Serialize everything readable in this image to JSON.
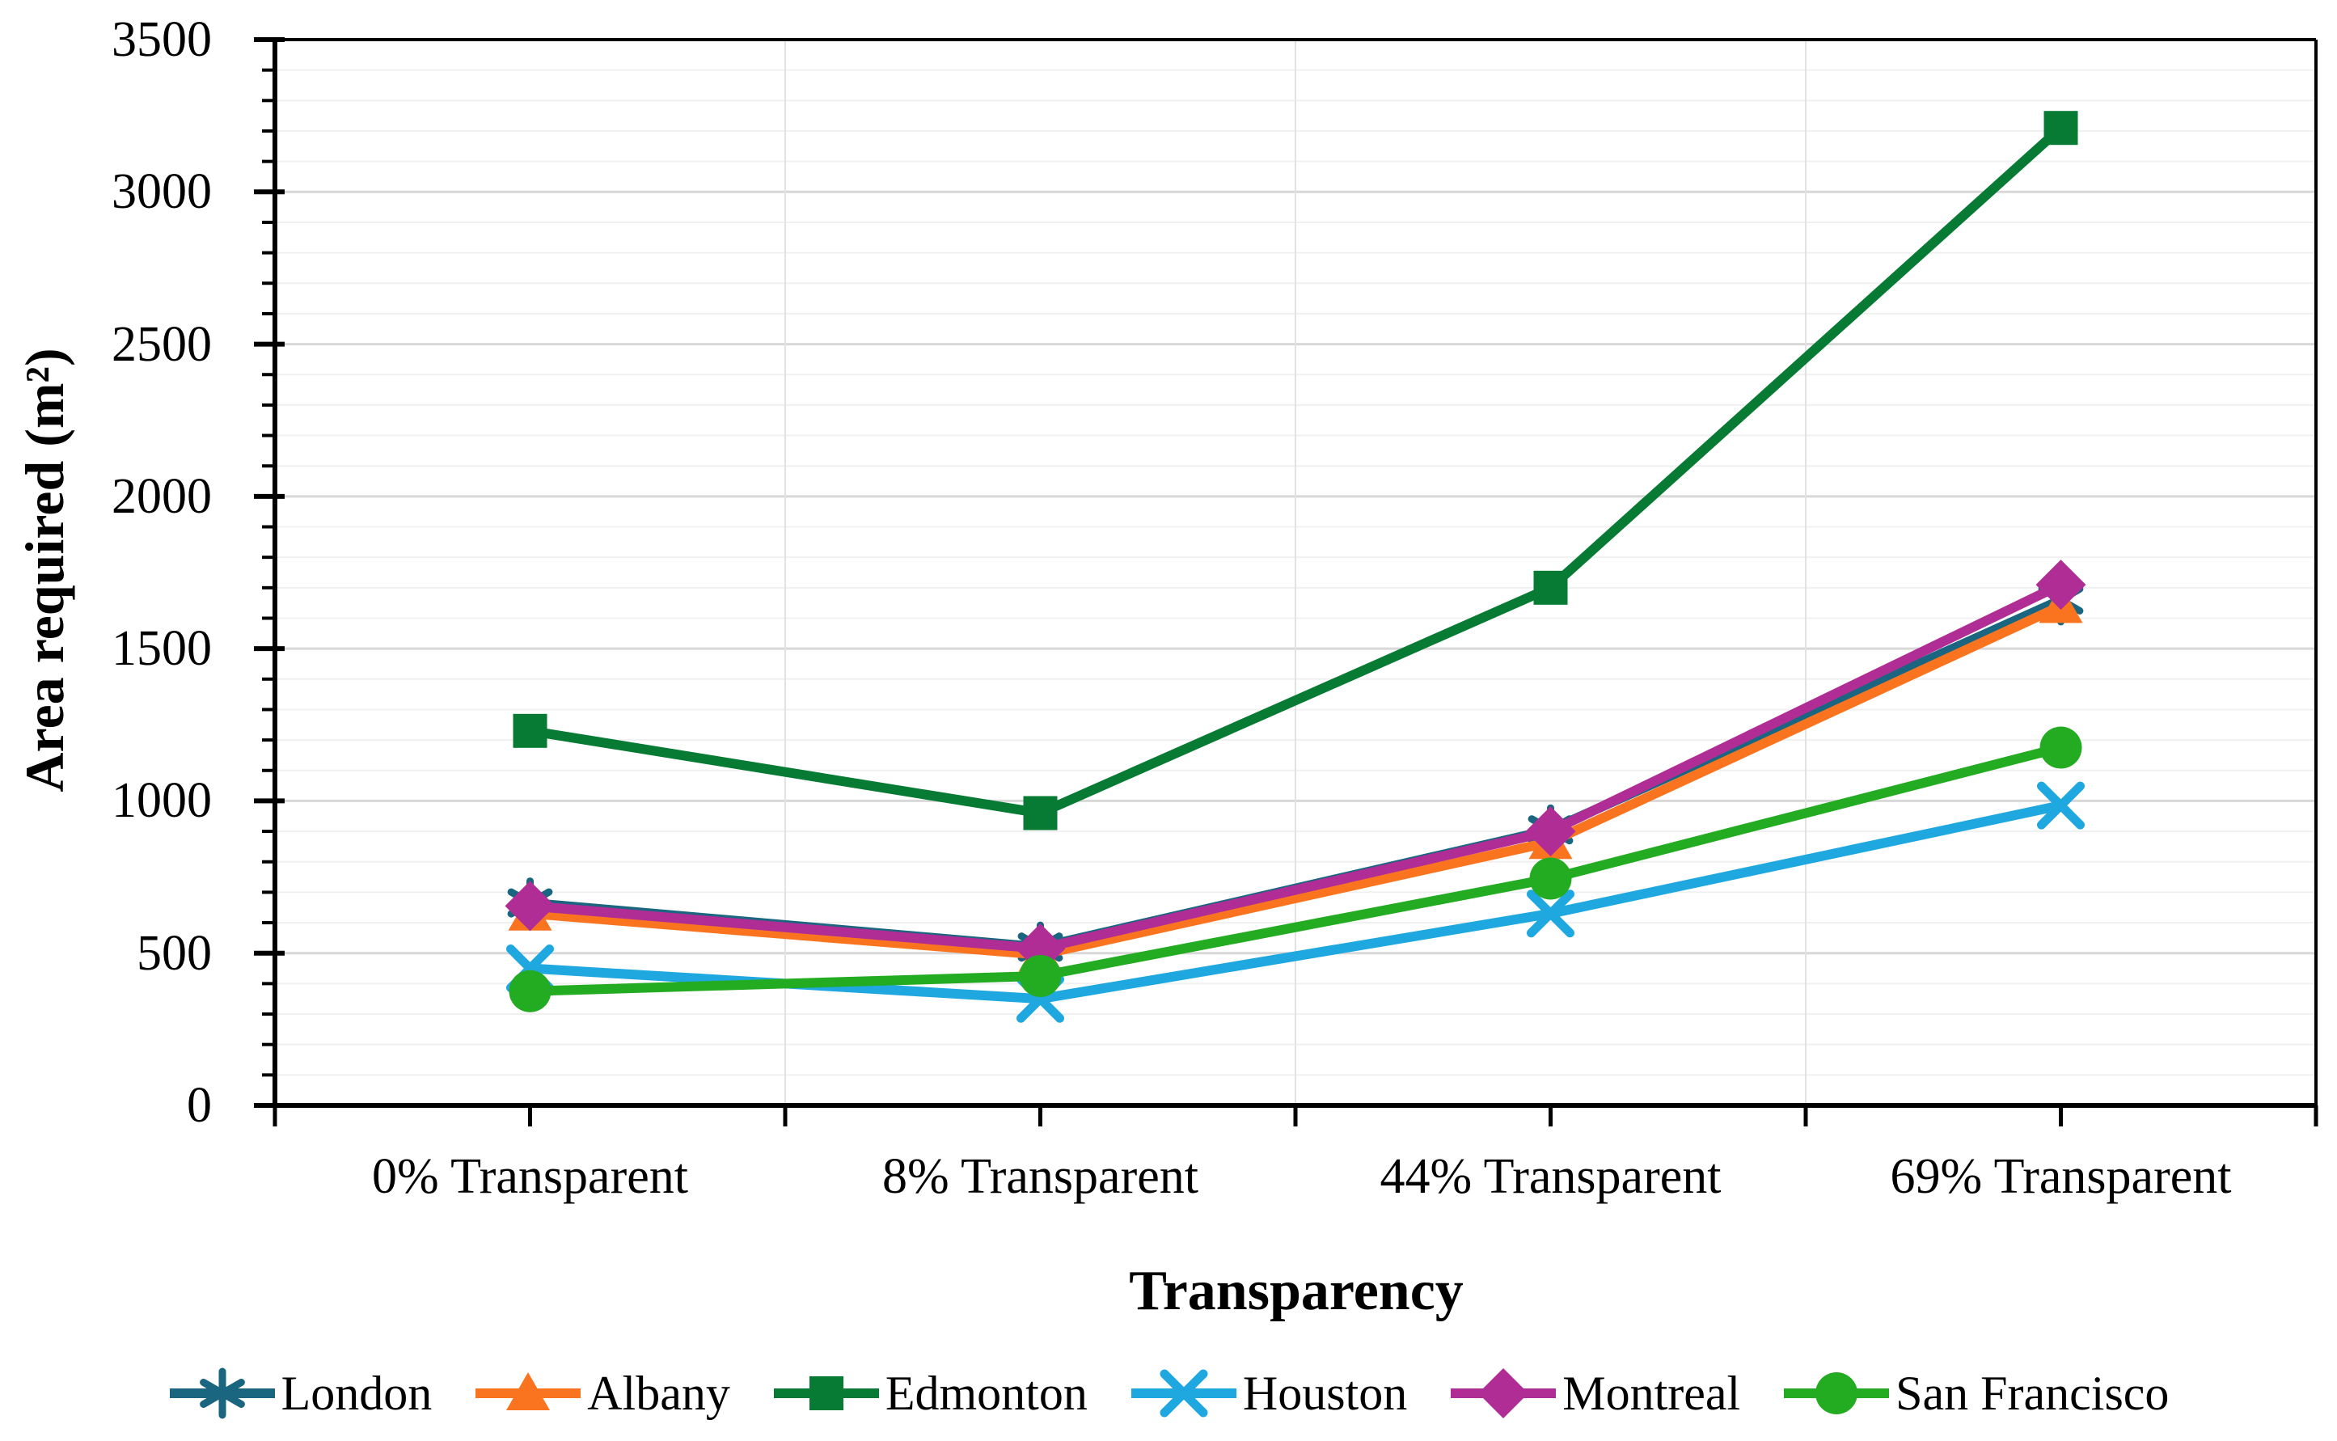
{
  "chart_data": {
    "type": "line",
    "title": "",
    "xlabel": "Transparency",
    "ylabel": "Area required (m²)",
    "categories": [
      "0% Transparent",
      "8% Transparent",
      "44% Transparent",
      "69% Transparent"
    ],
    "series": [
      {
        "name": "London",
        "color": "#1A6580",
        "marker": "asterisk",
        "values": [
          665,
          520,
          905,
          1660
        ]
      },
      {
        "name": "Albany",
        "color": "#FA7420",
        "marker": "triangle",
        "values": [
          630,
          495,
          865,
          1640
        ]
      },
      {
        "name": "Edmonton",
        "color": "#077B33",
        "marker": "square",
        "values": [
          1230,
          960,
          1700,
          3210
        ]
      },
      {
        "name": "Houston",
        "color": "#1FA8E0",
        "marker": "x",
        "values": [
          450,
          350,
          630,
          985
        ]
      },
      {
        "name": "Montreal",
        "color": "#B02D96",
        "marker": "diamond",
        "values": [
          655,
          515,
          900,
          1710
        ]
      },
      {
        "name": "San Francisco",
        "color": "#23AB21",
        "marker": "circle",
        "values": [
          375,
          425,
          745,
          1175
        ]
      }
    ],
    "ylim": [
      0,
      3500
    ],
    "y_major_step": 500,
    "y_minor_step": 100,
    "y_tick_labels": [
      "0",
      "500",
      "1000",
      "1500",
      "2000",
      "2500",
      "3000",
      "3500"
    ],
    "grid": "horizontal minor+major, vertical at category boundaries",
    "legend_position": "bottom"
  },
  "style": {
    "background": "#ffffff",
    "axis_color": "#000000",
    "grid_major_color": "#d8d8d8",
    "grid_minor_color": "#f0f0f0",
    "grid_vertical_color": "#e2e2e2"
  }
}
